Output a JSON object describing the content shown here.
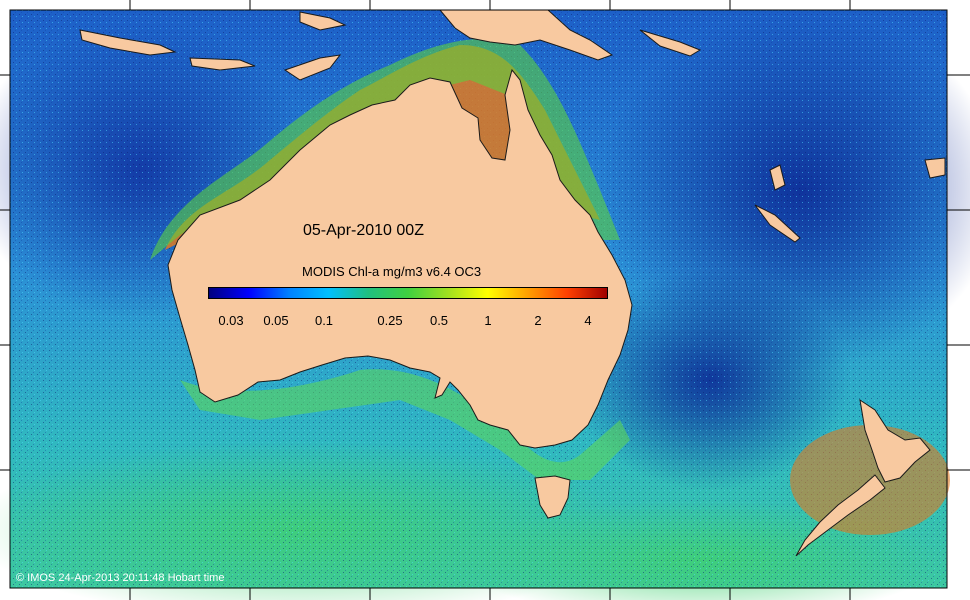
{
  "map": {
    "date_label": "05-Apr-2010 00Z",
    "copyright": "© IMOS 24-Apr-2013 20:11:48 Hobart time",
    "colors": {
      "land": "#f8c9a0",
      "ocean_low": "#1a3fb0",
      "ocean_mid": "#2aa0d8",
      "ocean_shelf": "#4fd0a0",
      "ocean_high": "#e08a20",
      "ocean_peak": "#b02010"
    }
  },
  "colorbar": {
    "title": "MODIS Chl-a mg/m3 v6.4 OC3",
    "gradient": [
      "#00007f",
      "#0000ff",
      "#0080ff",
      "#00c0ff",
      "#20c080",
      "#40d040",
      "#a0e020",
      "#ffff00",
      "#ffa000",
      "#ff4000",
      "#a00000"
    ],
    "ticks": [
      {
        "label": "0.03"
      },
      {
        "label": "0.05"
      },
      {
        "label": "0.1"
      },
      {
        "label": "0.25"
      },
      {
        "label": "0.5"
      },
      {
        "label": "1"
      },
      {
        "label": "2"
      },
      {
        "label": "4"
      }
    ]
  }
}
